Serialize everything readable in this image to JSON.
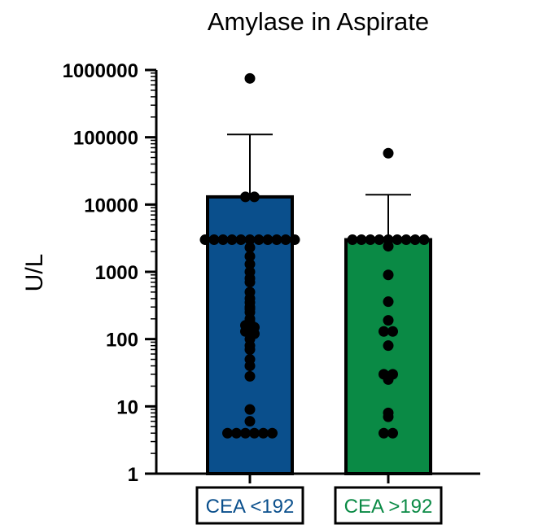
{
  "chart_data": {
    "type": "bar",
    "title": "Amylase in Aspirate",
    "xlabel": "",
    "ylabel": "U/L",
    "yscale": "log",
    "ylim": [
      1,
      1000000
    ],
    "yticks": [
      1,
      10,
      100,
      1000,
      10000,
      100000,
      1000000
    ],
    "ytick_labels": [
      "1",
      "10",
      "100",
      "1000",
      "10000",
      "100000",
      "1000000"
    ],
    "grid": false,
    "legend": "none",
    "categories": [
      "CEA <192",
      "CEA >192"
    ],
    "colors": [
      "#0a4f8c",
      "#0a8a45"
    ],
    "values": [
      13000,
      3000
    ],
    "error_upper": [
      110000,
      14000
    ],
    "points": [
      [
        750000,
        13000,
        13000,
        3000,
        3000,
        3000,
        3000,
        3000,
        3000,
        3000,
        3000,
        3000,
        3000,
        3000,
        2300,
        1700,
        1300,
        1000,
        800,
        700,
        500,
        400,
        350,
        300,
        280,
        250,
        200,
        180,
        160,
        150,
        140,
        130,
        120,
        100,
        80,
        70,
        50,
        40,
        28,
        9,
        6,
        4,
        4,
        4,
        4,
        4,
        4
      ],
      [
        58000,
        3000,
        3000,
        3000,
        3000,
        3000,
        3000,
        3000,
        3000,
        3000,
        2400,
        900,
        360,
        190,
        130,
        130,
        80,
        30,
        30,
        25,
        8,
        7,
        4,
        4
      ]
    ]
  }
}
